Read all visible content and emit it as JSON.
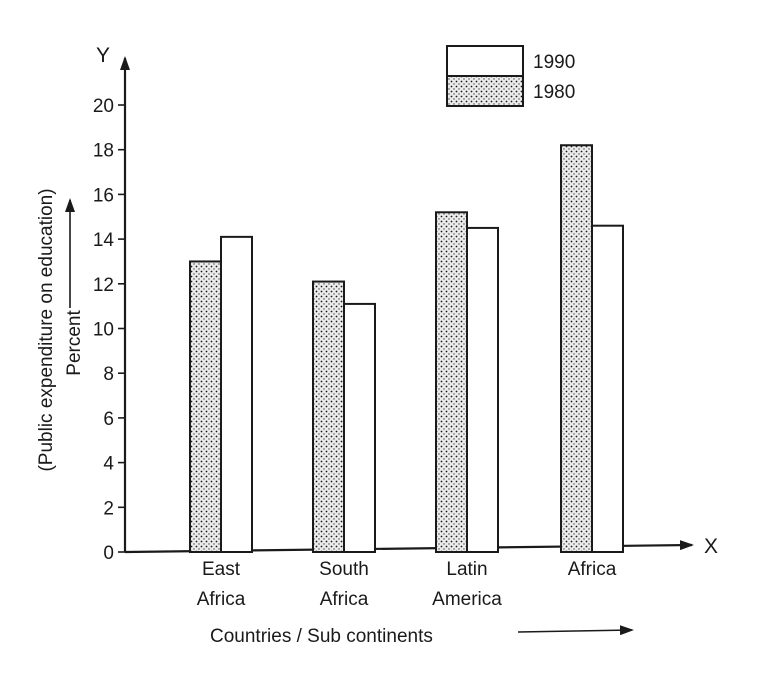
{
  "chart_data": {
    "type": "bar",
    "categories": [
      [
        "East",
        "Africa"
      ],
      [
        "South",
        "Africa"
      ],
      [
        "Latin",
        "America"
      ],
      [
        "Africa"
      ]
    ],
    "series": [
      {
        "name": "1980",
        "values": [
          13,
          12.1,
          15.2,
          18.2
        ],
        "pattern": "dotted"
      },
      {
        "name": "1990",
        "values": [
          14.1,
          11.1,
          14.5,
          14.6
        ],
        "pattern": "plain"
      }
    ],
    "legend_order": [
      "1990",
      "1980"
    ],
    "legend_position": "top-right",
    "yticks": [
      0,
      2,
      4,
      6,
      8,
      10,
      12,
      14,
      16,
      18,
      20
    ],
    "ylim": [
      0,
      20
    ],
    "xlabel": "Countries / Sub continents",
    "ylabel_lines": [
      "(Public expenditure on education)",
      "Percent"
    ],
    "x_axis_letter": "X",
    "y_axis_letter": "Y",
    "grid": false,
    "colors": {
      "ink": "#1a1a1a",
      "paper": "#ffffff",
      "dot_fill": "#e9e9e9"
    }
  }
}
